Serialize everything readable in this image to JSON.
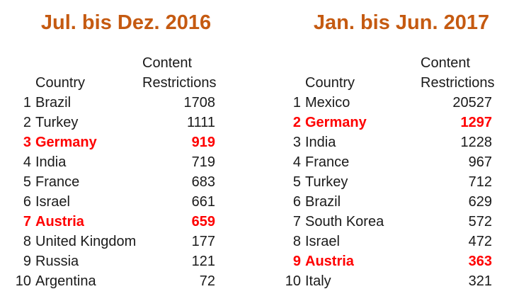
{
  "colors": {
    "title": "#C55A11",
    "highlight": "#FF0000",
    "text": "#1A1A1A",
    "background": "#FFFFFF"
  },
  "chart_data": [
    {
      "type": "table",
      "title": "Jul. bis Dez. 2016",
      "header": {
        "country": "Country",
        "value_line1": "Content",
        "value_line2": "Restrictions"
      },
      "rows": [
        {
          "rank": "1",
          "country": "Brazil",
          "value": "1708",
          "highlight": false
        },
        {
          "rank": "2",
          "country": "Turkey",
          "value": "1111",
          "highlight": false
        },
        {
          "rank": "3",
          "country": "Germany",
          "value": "919",
          "highlight": true
        },
        {
          "rank": "4",
          "country": "India",
          "value": "719",
          "highlight": false
        },
        {
          "rank": "5",
          "country": "France",
          "value": "683",
          "highlight": false
        },
        {
          "rank": "6",
          "country": "Israel",
          "value": "661",
          "highlight": false
        },
        {
          "rank": "7",
          "country": "Austria",
          "value": "659",
          "highlight": true
        },
        {
          "rank": "8",
          "country": "United Kingdom",
          "value": "177",
          "highlight": false
        },
        {
          "rank": "9",
          "country": "Russia",
          "value": "121",
          "highlight": false
        },
        {
          "rank": "10",
          "country": "Argentina",
          "value": "72",
          "highlight": false
        }
      ]
    },
    {
      "type": "table",
      "title": "Jan. bis Jun. 2017",
      "header": {
        "country": "Country",
        "value_line1": "Content",
        "value_line2": "Restrictions"
      },
      "rows": [
        {
          "rank": "1",
          "country": "Mexico",
          "value": "20527",
          "highlight": false
        },
        {
          "rank": "2",
          "country": "Germany",
          "value": "1297",
          "highlight": true
        },
        {
          "rank": "3",
          "country": "India",
          "value": "1228",
          "highlight": false
        },
        {
          "rank": "4",
          "country": "France",
          "value": "967",
          "highlight": false
        },
        {
          "rank": "5",
          "country": "Turkey",
          "value": "712",
          "highlight": false
        },
        {
          "rank": "6",
          "country": "Brazil",
          "value": "629",
          "highlight": false
        },
        {
          "rank": "7",
          "country": "South Korea",
          "value": "572",
          "highlight": false
        },
        {
          "rank": "8",
          "country": "Israel",
          "value": "472",
          "highlight": false
        },
        {
          "rank": "9",
          "country": "Austria",
          "value": "363",
          "highlight": true
        },
        {
          "rank": "10",
          "country": "Italy",
          "value": "321",
          "highlight": false
        }
      ]
    }
  ]
}
